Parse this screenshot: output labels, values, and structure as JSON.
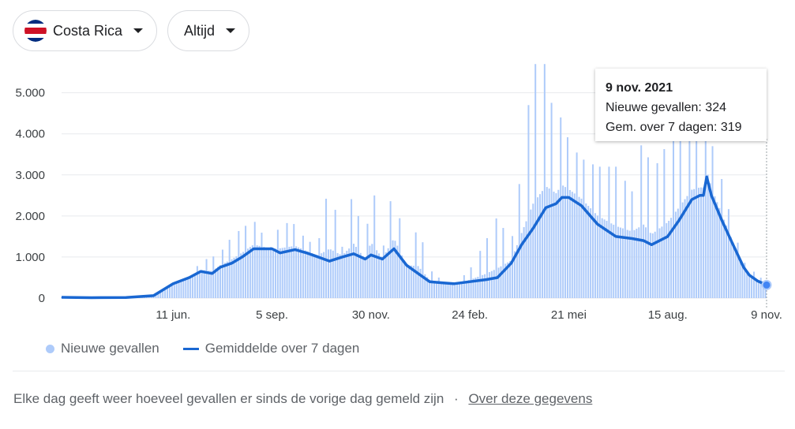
{
  "filters": {
    "country_label": "Costa Rica",
    "country_flag_icon": "costa-rica-flag-icon",
    "range_label": "Altijd"
  },
  "legend": {
    "bars_label": "Nieuwe gevallen",
    "line_label": "Gemiddelde over 7 dagen"
  },
  "tooltip": {
    "date": "9 nov. 2021",
    "new_cases": "Nieuwe gevallen: 324",
    "avg_7d": "Gem. over 7 dagen: 319"
  },
  "footer": {
    "note": "Elke dag geeft weer hoeveel gevallen er sinds de vorige dag gemeld zijn",
    "separator": "·",
    "link": "Over deze gegevens"
  },
  "colors": {
    "bars": "#aecbfa",
    "line": "#1967d2",
    "grid": "#e8eaed"
  },
  "chart_data": {
    "type": "bar",
    "title": "",
    "xlabel": "",
    "ylabel": "",
    "ylim": [
      0,
      5800
    ],
    "yticks": [
      0,
      1000,
      2000,
      3000,
      4000,
      5000
    ],
    "ytick_labels": [
      "0",
      "1.000",
      "2.000",
      "3.000",
      "4.000",
      "5.000"
    ],
    "x_start": "2020-03-06",
    "x_end": "2021-11-09",
    "xticks": [
      {
        "date": "2020-06-11",
        "label": "11 jun."
      },
      {
        "date": "2020-09-05",
        "label": "5 sep."
      },
      {
        "date": "2020-11-30",
        "label": "30 nov."
      },
      {
        "date": "2021-02-24",
        "label": "24 feb."
      },
      {
        "date": "2021-05-21",
        "label": "21 mei"
      },
      {
        "date": "2021-08-15",
        "label": "15 aug."
      },
      {
        "date": "2021-11-09",
        "label": "9 nov."
      }
    ],
    "series": [
      {
        "name": "Gemiddelde over 7 dagen",
        "type": "line",
        "x": [
          "2020-03-06",
          "2020-04-01",
          "2020-05-01",
          "2020-05-25",
          "2020-06-11",
          "2020-06-25",
          "2020-07-05",
          "2020-07-15",
          "2020-07-22",
          "2020-08-01",
          "2020-08-10",
          "2020-08-20",
          "2020-09-05",
          "2020-09-12",
          "2020-09-25",
          "2020-10-05",
          "2020-10-15",
          "2020-10-25",
          "2020-11-05",
          "2020-11-15",
          "2020-11-25",
          "2020-11-30",
          "2020-12-10",
          "2020-12-20",
          "2020-12-31",
          "2021-01-10",
          "2021-01-20",
          "2021-02-01",
          "2021-02-10",
          "2021-02-24",
          "2021-03-10",
          "2021-03-20",
          "2021-04-01",
          "2021-04-10",
          "2021-04-20",
          "2021-05-01",
          "2021-05-10",
          "2021-05-15",
          "2021-05-21",
          "2021-06-01",
          "2021-06-15",
          "2021-07-01",
          "2021-07-15",
          "2021-07-25",
          "2021-08-01",
          "2021-08-15",
          "2021-08-25",
          "2021-09-05",
          "2021-09-12",
          "2021-09-15",
          "2021-09-18",
          "2021-09-22",
          "2021-10-01",
          "2021-10-10",
          "2021-10-20",
          "2021-10-25",
          "2021-11-01",
          "2021-11-09"
        ],
        "y": [
          20,
          10,
          15,
          60,
          350,
          500,
          650,
          600,
          750,
          850,
          1000,
          1200,
          1200,
          1100,
          1180,
          1100,
          1000,
          900,
          1000,
          1080,
          950,
          1050,
          950,
          1200,
          800,
          600,
          400,
          370,
          350,
          400,
          450,
          500,
          850,
          1300,
          1700,
          2200,
          2300,
          2450,
          2450,
          2250,
          1800,
          1500,
          1450,
          1400,
          1300,
          1500,
          1900,
          2400,
          2500,
          2500,
          2950,
          2500,
          1900,
          1350,
          750,
          560,
          420,
          319
        ]
      },
      {
        "name": "Nieuwe gevallen",
        "type": "bar",
        "x": [
          "2020-03-06",
          "2020-04-01",
          "2020-05-01",
          "2020-05-25",
          "2020-06-11",
          "2020-06-25",
          "2020-07-05",
          "2020-07-15",
          "2020-07-22",
          "2020-08-01",
          "2020-08-10",
          "2020-08-20",
          "2020-09-05",
          "2020-09-12",
          "2020-09-25",
          "2020-10-05",
          "2020-10-15",
          "2020-10-25",
          "2020-11-05",
          "2020-11-15",
          "2020-11-25",
          "2020-11-30",
          "2020-12-10",
          "2020-12-20",
          "2020-12-31",
          "2021-01-10",
          "2021-01-20",
          "2021-02-01",
          "2021-02-10",
          "2021-02-24",
          "2021-03-10",
          "2021-03-20",
          "2021-04-01",
          "2021-04-10",
          "2021-04-20",
          "2021-05-01",
          "2021-05-10",
          "2021-05-15",
          "2021-05-21",
          "2021-06-01",
          "2021-06-15",
          "2021-07-01",
          "2021-07-15",
          "2021-07-25",
          "2021-08-01",
          "2021-08-15",
          "2021-08-25",
          "2021-09-05",
          "2021-09-12",
          "2021-09-15",
          "2021-09-18",
          "2021-09-22",
          "2021-10-01",
          "2021-10-10",
          "2021-10-20",
          "2021-10-25",
          "2021-11-01",
          "2021-11-09"
        ],
        "values": [
          20,
          10,
          15,
          60,
          350,
          500,
          900,
          1000,
          1100,
          1500,
          1700,
          1900,
          1200,
          1850,
          1800,
          1400,
          1300,
          2900,
          1250,
          2700,
          950,
          3100,
          1100,
          2900,
          800,
          1800,
          700,
          400,
          300,
          700,
          1400,
          2000,
          1300,
          3200,
          5700,
          5700,
          4000,
          4500,
          3800,
          3400,
          3200,
          3200,
          2600,
          4000,
          3000,
          3800,
          4000,
          4000,
          3800,
          3800,
          4000,
          3800,
          2900,
          1800,
          900,
          700,
          600,
          324
        ]
      }
    ]
  }
}
